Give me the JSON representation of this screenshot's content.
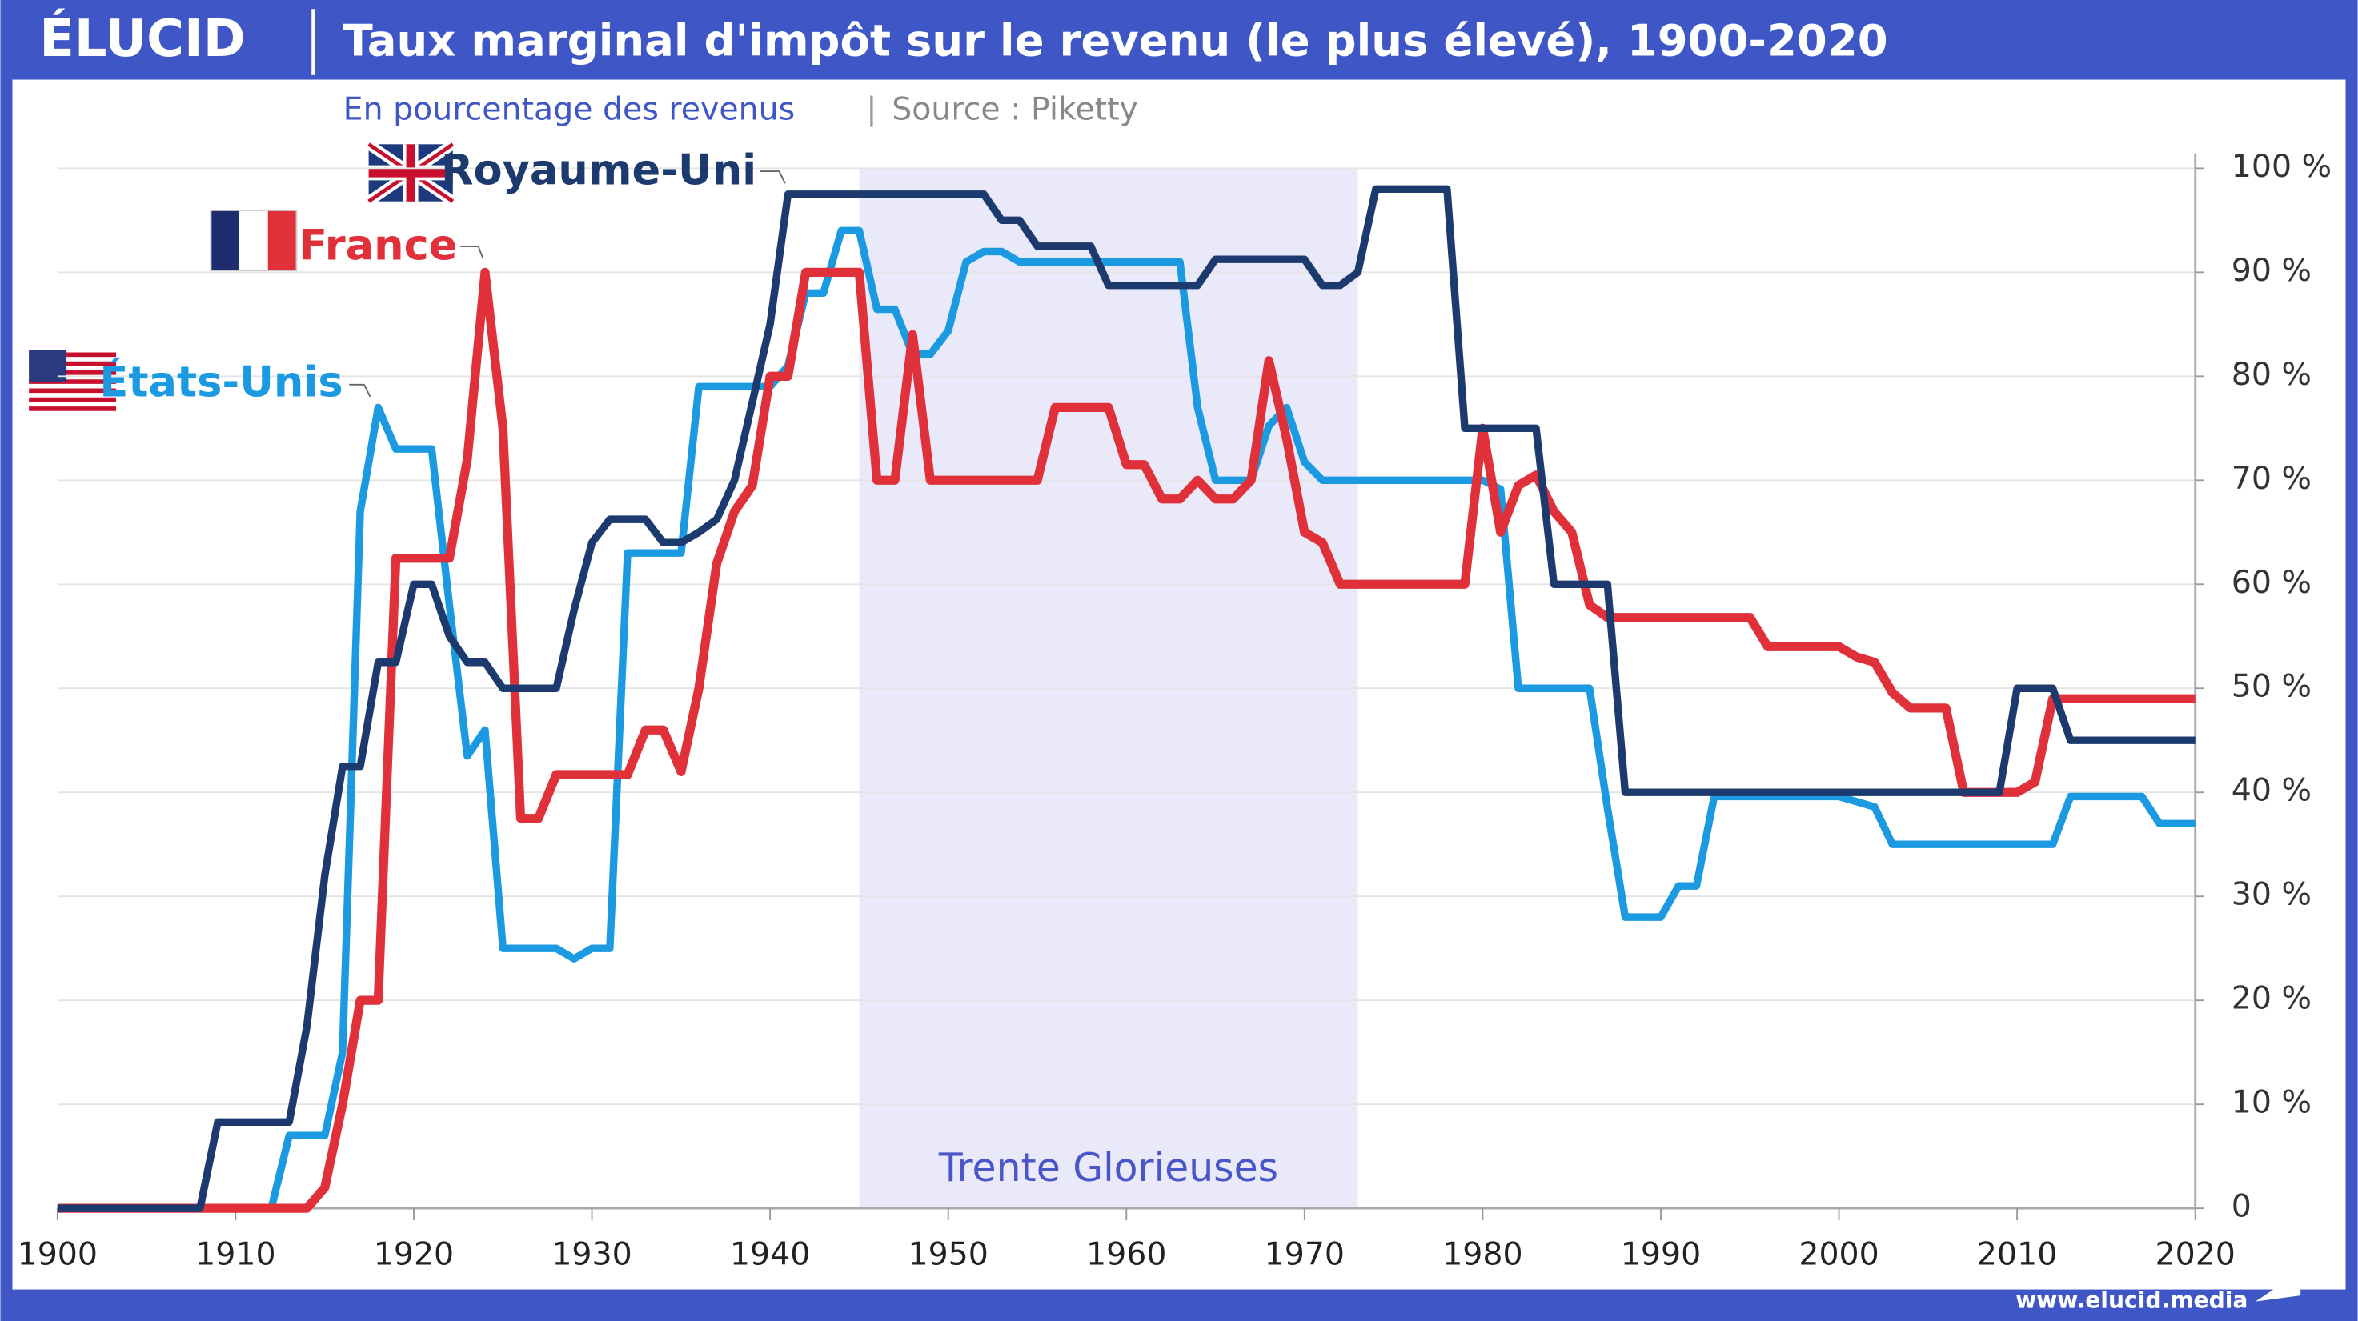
{
  "header": {
    "logo": "ÉLUCID",
    "footer": "www.elucid.media"
  },
  "chart_data": {
    "type": "line",
    "title": "Taux marginal d'impôt sur le revenu (le plus élevé), 1900-2020",
    "subtitle": "En pourcentage des revenus",
    "source": "Source : Piketty",
    "annotation": "Trente Glorieuses",
    "shaded_range": [
      1945,
      1973
    ],
    "xlim": [
      1900,
      2020
    ],
    "xticks": [
      1900,
      1910,
      1920,
      1930,
      1940,
      1950,
      1960,
      1970,
      1980,
      1990,
      2000,
      2010,
      2020
    ],
    "ylim": [
      0,
      100
    ],
    "yticks": [
      0,
      {
        "value": 10,
        "label": "10 %"
      },
      {
        "value": 20,
        "label": "20 %"
      },
      {
        "value": 30,
        "label": "30 %"
      },
      {
        "value": 40,
        "label": "40 %"
      },
      {
        "value": 50,
        "label": "50 %"
      },
      {
        "value": 60,
        "label": "60 %"
      },
      {
        "value": 70,
        "label": "70 %"
      },
      {
        "value": 80,
        "label": "80 %"
      },
      {
        "value": 90,
        "label": "90 %"
      },
      {
        "value": 100,
        "label": "100 %"
      }
    ],
    "grid": true,
    "x": [
      1900,
      1901,
      1902,
      1903,
      1904,
      1905,
      1906,
      1907,
      1908,
      1909,
      1910,
      1911,
      1912,
      1913,
      1914,
      1915,
      1916,
      1917,
      1918,
      1919,
      1920,
      1921,
      1922,
      1923,
      1924,
      1925,
      1926,
      1927,
      1928,
      1929,
      1930,
      1931,
      1932,
      1933,
      1934,
      1935,
      1936,
      1937,
      1938,
      1939,
      1940,
      1941,
      1942,
      1943,
      1944,
      1945,
      1946,
      1947,
      1948,
      1949,
      1950,
      1951,
      1952,
      1953,
      1954,
      1955,
      1956,
      1957,
      1958,
      1959,
      1960,
      1961,
      1962,
      1963,
      1964,
      1965,
      1966,
      1967,
      1968,
      1969,
      1970,
      1971,
      1972,
      1973,
      1974,
      1975,
      1976,
      1977,
      1978,
      1979,
      1980,
      1981,
      1982,
      1983,
      1984,
      1985,
      1986,
      1987,
      1988,
      1989,
      1990,
      1991,
      1992,
      1993,
      1994,
      1995,
      1996,
      1997,
      1998,
      1999,
      2000,
      2001,
      2002,
      2003,
      2004,
      2005,
      2006,
      2007,
      2008,
      2009,
      2010,
      2011,
      2012,
      2013,
      2014,
      2015,
      2016,
      2017,
      2018,
      2019,
      2020
    ],
    "series": [
      {
        "name": "Royaume-Uni",
        "color": "#1d3a6e",
        "values": [
          0,
          0,
          0,
          0,
          0,
          0,
          0,
          0,
          0,
          8.3,
          8.3,
          8.3,
          8.3,
          8.3,
          17.5,
          32,
          42.5,
          42.5,
          52.5,
          52.5,
          60,
          60,
          55,
          52.5,
          52.5,
          50,
          50,
          50,
          50,
          57.5,
          64,
          66.25,
          66.25,
          66.25,
          64,
          64,
          65,
          66.25,
          70,
          77.5,
          85,
          97.5,
          97.5,
          97.5,
          97.5,
          97.5,
          97.5,
          97.5,
          97.5,
          97.5,
          97.5,
          97.5,
          97.5,
          95,
          95,
          92.5,
          92.5,
          92.5,
          92.5,
          88.75,
          88.75,
          88.75,
          88.75,
          88.75,
          88.75,
          91.25,
          91.25,
          91.25,
          91.25,
          91.25,
          91.25,
          88.75,
          88.75,
          90,
          98,
          98,
          98,
          98,
          98,
          75,
          75,
          75,
          75,
          75,
          60,
          60,
          60,
          60,
          40,
          40,
          40,
          40,
          40,
          40,
          40,
          40,
          40,
          40,
          40,
          40,
          40,
          40,
          40,
          40,
          40,
          40,
          40,
          40,
          40,
          40,
          50,
          50,
          50,
          45,
          45,
          45,
          45,
          45,
          45,
          45,
          45
        ]
      },
      {
        "name": "France",
        "color": "#e0313a",
        "values": [
          0,
          0,
          0,
          0,
          0,
          0,
          0,
          0,
          0,
          0,
          0,
          0,
          0,
          0,
          0,
          2,
          10,
          20,
          20,
          62.5,
          62.5,
          62.5,
          62.5,
          72,
          90,
          75,
          37.5,
          37.5,
          41.7,
          41.7,
          41.7,
          41.7,
          41.7,
          46,
          46,
          42,
          50,
          62,
          67,
          69.5,
          80,
          80,
          90,
          90,
          90,
          90,
          70,
          70,
          84,
          70,
          70,
          70,
          70,
          70,
          70,
          70,
          77,
          77,
          77,
          77,
          71.5,
          71.5,
          68.2,
          68.2,
          70,
          68.2,
          68.2,
          70,
          81.5,
          74,
          65,
          64,
          60,
          60,
          60,
          60,
          60,
          60,
          60,
          60,
          75,
          65,
          69.5,
          70.5,
          67,
          65,
          58,
          56.8,
          56.8,
          56.8,
          56.8,
          56.8,
          56.8,
          56.8,
          56.8,
          56.8,
          54,
          54,
          54,
          54,
          54,
          53,
          52.5,
          49.6,
          48.1,
          48.1,
          48.1,
          40,
          40,
          40,
          40,
          41,
          49,
          49,
          49,
          49,
          49,
          49,
          49,
          49,
          49
        ]
      },
      {
        "name": "États-Unis",
        "color": "#1b9ae2",
        "values": [
          0,
          0,
          0,
          0,
          0,
          0,
          0,
          0,
          0,
          0,
          0,
          0,
          0,
          7,
          7,
          7,
          15,
          67,
          77,
          73,
          73,
          73,
          58,
          43.5,
          46,
          25,
          25,
          25,
          25,
          24,
          25,
          25,
          63,
          63,
          63,
          63,
          79,
          79,
          79,
          79,
          79,
          81,
          88,
          88,
          94,
          94,
          86.45,
          86.45,
          82.13,
          82.13,
          84.36,
          91,
          92,
          92,
          91,
          91,
          91,
          91,
          91,
          91,
          91,
          91,
          91,
          91,
          77,
          70,
          70,
          70,
          75.25,
          77,
          71.75,
          70,
          70,
          70,
          70,
          70,
          70,
          70,
          70,
          70,
          70,
          69.13,
          50,
          50,
          50,
          50,
          50,
          38.5,
          28,
          28,
          28,
          31,
          31,
          39.6,
          39.6,
          39.6,
          39.6,
          39.6,
          39.6,
          39.6,
          39.6,
          39.1,
          38.6,
          35,
          35,
          35,
          35,
          35,
          35,
          35,
          35,
          35,
          35,
          39.6,
          39.6,
          39.6,
          39.6,
          39.6,
          37,
          37,
          37
        ]
      }
    ]
  }
}
